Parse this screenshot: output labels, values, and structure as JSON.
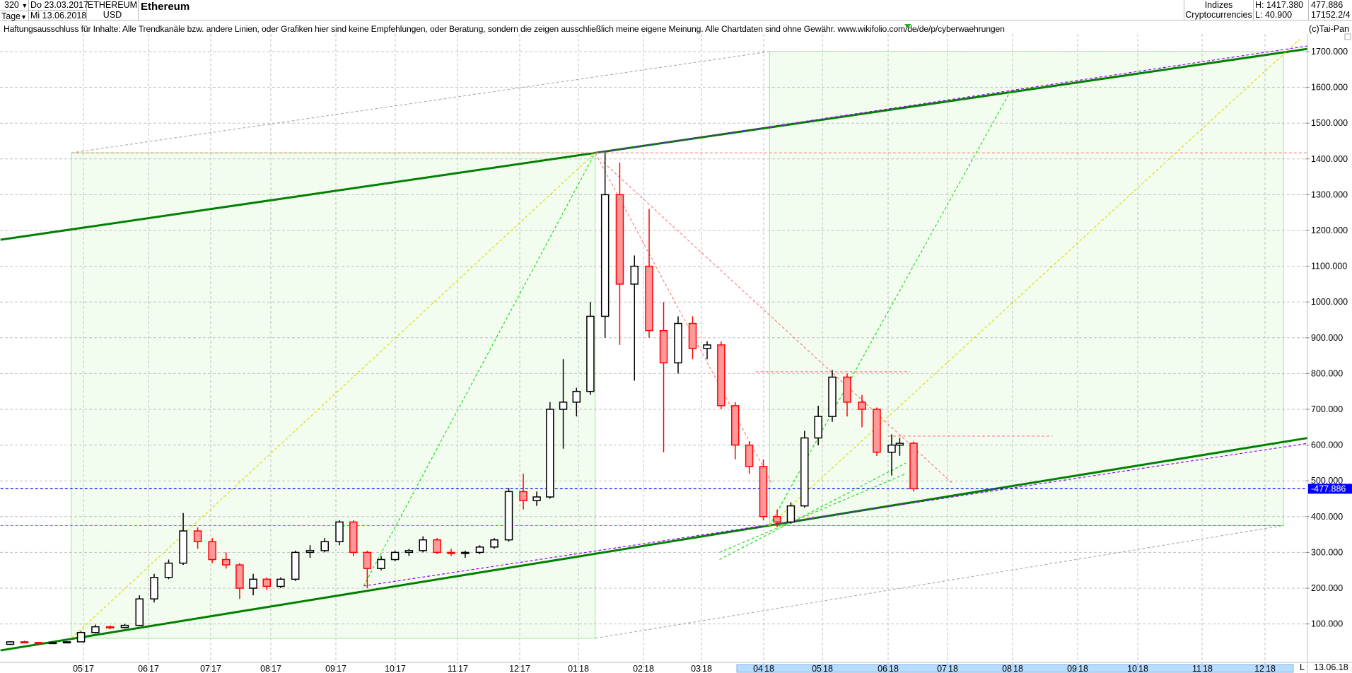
{
  "header": {
    "bars": "320",
    "period": "Tage",
    "date_from": "Do 23.03.2017",
    "date_to": "Mi 13.06.2018",
    "symbol": "ETHEREUM",
    "currency": "USD",
    "title": "Ethereum",
    "group": "Indizes",
    "subgroup": "Cryptocurrencies",
    "high": "H: 1417.380",
    "low": "L: 40.900",
    "last": "477.886",
    "extra": "17152.2/4",
    "dropdown_icon": "caret-down-icon"
  },
  "disclaimer": "Haftungsausschluss für Inhalte: Alle Trendkanäle bzw. andere Linien, oder Grafiken hier sind keine Empfehlungen, oder Beratung, sondern die zeigen ausschließlich meine eigene Meinung. Alle Chartdaten sind ohne Gewähr.  www.wikifolio.com/de/de/p/cyberwaehrungen",
  "copyright": "(c)Tai-Pan",
  "footer": {
    "scale_mode": "L",
    "date": "13.06.18"
  },
  "chart_data": {
    "type": "candlestick",
    "title": "Ethereum",
    "ylim": [
      0,
      1750
    ],
    "y_ticks": [
      "100.000",
      "200.000",
      "300.000",
      "400.000",
      "500.000",
      "600.000",
      "700.000",
      "800.000",
      "900.000",
      "1000.000",
      "1100.000",
      "1200.000",
      "1300.000",
      "1400.000",
      "1500.000",
      "1600.000",
      "1700.000"
    ],
    "y_tick_values": [
      100,
      200,
      300,
      400,
      500,
      600,
      700,
      800,
      900,
      1000,
      1100,
      1200,
      1300,
      1400,
      1500,
      1600,
      1700
    ],
    "x_ticks": [
      "05/17",
      "06/17",
      "07/17",
      "08/17",
      "09/17",
      "10/17",
      "11/17",
      "12/17",
      "01/18",
      "02/18",
      "03/18",
      "04/18",
      "05/18",
      "06/18",
      "07/18",
      "08/18",
      "09/18",
      "10/18",
      "11/18",
      "12/18"
    ],
    "x_tick_dates": [
      "2017-05-01",
      "2017-06-01",
      "2017-07-01",
      "2017-08-01",
      "2017-09-01",
      "2017-10-01",
      "2017-11-01",
      "2017-12-01",
      "2018-01-01",
      "2018-02-01",
      "2018-03-01",
      "2018-04-01",
      "2018-05-01",
      "2018-06-01",
      "2018-07-01",
      "2018-08-01",
      "2018-09-01",
      "2018-10-01",
      "2018-11-01",
      "2018-12-01"
    ],
    "highlight_range": [
      "2018-04-01",
      "2018-12-31"
    ],
    "grid": true,
    "last_price": 477.886,
    "last_price_label": "477.886",
    "up_color": "#000000",
    "down_color": "#ff0000",
    "candles_columns": [
      "date",
      "open",
      "high",
      "low",
      "close"
    ],
    "candles": [
      [
        "2017-03-23",
        43,
        52,
        40.9,
        50
      ],
      [
        "2017-03-30",
        50,
        53,
        47,
        48
      ],
      [
        "2017-04-06",
        48,
        50,
        44,
        45
      ],
      [
        "2017-04-13",
        45,
        50,
        44,
        48
      ],
      [
        "2017-04-20",
        48,
        52,
        46,
        50
      ],
      [
        "2017-04-27",
        50,
        80,
        49,
        76
      ],
      [
        "2017-05-04",
        76,
        98,
        74,
        92
      ],
      [
        "2017-05-11",
        92,
        96,
        85,
        90
      ],
      [
        "2017-05-18",
        90,
        100,
        88,
        96
      ],
      [
        "2017-05-25",
        96,
        180,
        94,
        170
      ],
      [
        "2017-06-01",
        170,
        240,
        160,
        230
      ],
      [
        "2017-06-08",
        230,
        280,
        225,
        270
      ],
      [
        "2017-06-15",
        270,
        410,
        265,
        360
      ],
      [
        "2017-06-22",
        360,
        370,
        310,
        330
      ],
      [
        "2017-06-29",
        330,
        340,
        270,
        280
      ],
      [
        "2017-07-06",
        280,
        300,
        255,
        265
      ],
      [
        "2017-07-13",
        265,
        270,
        170,
        200
      ],
      [
        "2017-07-20",
        200,
        240,
        180,
        225
      ],
      [
        "2017-07-27",
        225,
        230,
        195,
        205
      ],
      [
        "2017-08-03",
        205,
        230,
        200,
        225
      ],
      [
        "2017-08-10",
        225,
        305,
        220,
        300
      ],
      [
        "2017-08-17",
        300,
        320,
        285,
        305
      ],
      [
        "2017-08-24",
        305,
        340,
        300,
        330
      ],
      [
        "2017-08-31",
        330,
        390,
        320,
        385
      ],
      [
        "2017-09-07",
        385,
        390,
        290,
        300
      ],
      [
        "2017-09-14",
        300,
        305,
        200,
        255
      ],
      [
        "2017-09-21",
        255,
        290,
        250,
        280
      ],
      [
        "2017-09-28",
        280,
        305,
        275,
        300
      ],
      [
        "2017-10-05",
        300,
        310,
        290,
        305
      ],
      [
        "2017-10-12",
        305,
        345,
        300,
        335
      ],
      [
        "2017-10-19",
        335,
        340,
        295,
        300
      ],
      [
        "2017-10-26",
        300,
        310,
        290,
        298
      ],
      [
        "2017-11-02",
        298,
        305,
        285,
        300
      ],
      [
        "2017-11-09",
        300,
        320,
        295,
        315
      ],
      [
        "2017-11-16",
        315,
        340,
        310,
        335
      ],
      [
        "2017-11-23",
        335,
        480,
        330,
        470
      ],
      [
        "2017-11-30",
        470,
        520,
        420,
        445
      ],
      [
        "2017-12-07",
        445,
        470,
        430,
        455
      ],
      [
        "2017-12-14",
        455,
        720,
        450,
        700
      ],
      [
        "2017-12-21",
        700,
        840,
        590,
        720
      ],
      [
        "2017-12-28",
        720,
        760,
        680,
        750
      ],
      [
        "2018-01-04",
        750,
        1000,
        740,
        960
      ],
      [
        "2018-01-11",
        960,
        1417.38,
        900,
        1300
      ],
      [
        "2018-01-18",
        1300,
        1390,
        880,
        1050
      ],
      [
        "2018-01-25",
        1050,
        1130,
        780,
        1100
      ],
      [
        "2018-02-01",
        1100,
        1260,
        900,
        920
      ],
      [
        "2018-02-08",
        920,
        1000,
        580,
        830
      ],
      [
        "2018-02-15",
        830,
        960,
        800,
        940
      ],
      [
        "2018-02-22",
        940,
        960,
        840,
        870
      ],
      [
        "2018-03-01",
        870,
        890,
        840,
        880
      ],
      [
        "2018-03-08",
        880,
        890,
        700,
        710
      ],
      [
        "2018-03-15",
        710,
        720,
        560,
        600
      ],
      [
        "2018-03-22",
        600,
        610,
        520,
        540
      ],
      [
        "2018-03-29",
        540,
        560,
        390,
        400
      ],
      [
        "2018-04-05",
        400,
        420,
        370,
        385
      ],
      [
        "2018-04-12",
        385,
        440,
        380,
        430
      ],
      [
        "2018-04-19",
        430,
        640,
        425,
        620
      ],
      [
        "2018-04-26",
        620,
        710,
        600,
        680
      ],
      [
        "2018-05-03",
        680,
        810,
        665,
        790
      ],
      [
        "2018-05-10",
        790,
        800,
        680,
        720
      ],
      [
        "2018-05-17",
        720,
        740,
        650,
        700
      ],
      [
        "2018-05-24",
        700,
        705,
        570,
        580
      ],
      [
        "2018-05-31",
        580,
        630,
        515,
        600
      ],
      [
        "2018-06-04",
        600,
        620,
        570,
        605
      ],
      [
        "2018-06-11",
        605,
        610,
        470,
        477.886
      ]
    ],
    "zones": [
      {
        "from": "2017-04-25",
        "to": "2018-01-09",
        "low": 60,
        "high": 1417,
        "color": "#f2fdf0"
      },
      {
        "from": "2018-04-04",
        "to": "2018-12-10",
        "low": 375,
        "high": 1700,
        "color": "#f2fdf0"
      }
    ],
    "trendlines": [
      {
        "kind": "channel",
        "color": "#008000",
        "points": [
          [
            "2017-03-21",
            26
          ],
          [
            "2018-12-22",
            620
          ]
        ]
      },
      {
        "kind": "channel",
        "color": "#008000",
        "points": [
          [
            "2017-03-21",
            1174
          ],
          [
            "2018-12-22",
            1708
          ]
        ]
      },
      {
        "kind": "dashed",
        "color": "#9900ff",
        "points": [
          [
            "2017-09-15",
            206
          ],
          [
            "2018-12-22",
            605
          ]
        ]
      },
      {
        "kind": "dashed",
        "color": "#9900ff",
        "points": [
          [
            "2018-01-09",
            1417
          ],
          [
            "2018-12-22",
            1716
          ]
        ]
      },
      {
        "kind": "dashed",
        "color": "#ff8080",
        "points": [
          [
            "2017-04-25",
            1417
          ],
          [
            "2018-12-22",
            1417
          ]
        ]
      },
      {
        "kind": "dashed",
        "color": "#0000ff",
        "points": [
          [
            "2017-03-21",
            477.886
          ],
          [
            "2018-12-22",
            477.886
          ]
        ]
      },
      {
        "kind": "dashed",
        "color": "#00dd00",
        "points": [
          [
            "2017-03-21",
            375
          ],
          [
            "2018-12-10",
            375
          ]
        ]
      },
      {
        "kind": "dashed",
        "color": "#b0b0b0",
        "points": [
          [
            "2017-04-25",
            1417
          ],
          [
            "2018-04-04",
            1700
          ]
        ]
      },
      {
        "kind": "dashed",
        "color": "#b0b0b0",
        "points": [
          [
            "2018-01-09",
            60
          ],
          [
            "2018-12-10",
            375
          ]
        ]
      },
      {
        "kind": "dashed",
        "color": "#dddd00",
        "points": [
          [
            "2017-04-25",
            60
          ],
          [
            "2018-01-09",
            1417
          ]
        ]
      },
      {
        "kind": "dashed",
        "color": "#22dd22",
        "points": [
          [
            "2017-09-15",
            206
          ],
          [
            "2018-01-09",
            1417
          ]
        ]
      },
      {
        "kind": "dashed",
        "color": "#22dd22",
        "points": [
          [
            "2018-04-04",
            375
          ],
          [
            "2018-07-31",
            1590
          ]
        ]
      },
      {
        "kind": "dashed",
        "color": "#dddd00",
        "points": [
          [
            "2018-04-04",
            375
          ],
          [
            "2018-12-18",
            1735
          ]
        ]
      },
      {
        "kind": "dashed",
        "color": "#ff8080",
        "points": [
          [
            "2018-01-13",
            1390
          ],
          [
            "2018-07-03",
            495
          ]
        ]
      },
      {
        "kind": "dashed",
        "color": "#ff8080",
        "points": [
          [
            "2018-01-09",
            1417
          ],
          [
            "2018-04-05",
            495
          ]
        ]
      },
      {
        "kind": "dashed",
        "color": "#ff8080",
        "points": [
          [
            "2018-03-28",
            805
          ],
          [
            "2018-06-12",
            805
          ]
        ]
      },
      {
        "kind": "dashed",
        "color": "#ff8080",
        "points": [
          [
            "2018-06-01",
            625
          ],
          [
            "2018-08-20",
            625
          ]
        ]
      },
      {
        "kind": "dashed",
        "color": "#22dd22",
        "points": [
          [
            "2018-03-10",
            280
          ],
          [
            "2018-06-10",
            550
          ]
        ]
      },
      {
        "kind": "dashed",
        "color": "#22dd22",
        "points": [
          [
            "2018-03-10",
            300
          ],
          [
            "2018-06-10",
            520
          ]
        ]
      }
    ]
  }
}
